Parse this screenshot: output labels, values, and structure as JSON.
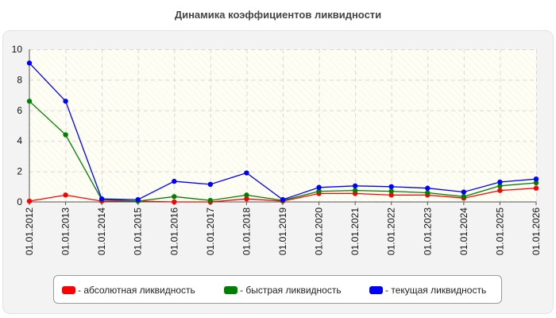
{
  "chart_data": {
    "type": "line",
    "title": "Динамика коэффициентов ликвидности",
    "categories": [
      "01.01.2012",
      "01.01.2013",
      "01.01.2014",
      "01.01.2015",
      "01.01.2016",
      "01.01.2017",
      "01.01.2018",
      "01.01.2019",
      "01.01.2020",
      "01.01.2021",
      "01.01.2022",
      "01.01.2023",
      "01.01.2024",
      "01.01.2025",
      "01.01.2026"
    ],
    "ylim": [
      0,
      10
    ],
    "yticks": [
      "0",
      "2",
      "4",
      "6",
      "8",
      "10"
    ],
    "grid": true,
    "legend_position": "bottom",
    "series": [
      {
        "name": "- абсолютная ликвидность",
        "color": "#ff0000",
        "values": [
          0.05,
          0.45,
          0.05,
          0.05,
          0.0,
          0.0,
          0.2,
          0.05,
          0.55,
          0.55,
          0.45,
          0.45,
          0.25,
          0.75,
          0.9
        ]
      },
      {
        "name": "- быстрая ликвидность",
        "color": "#008000",
        "values": [
          6.6,
          4.4,
          0.15,
          0.05,
          0.35,
          0.1,
          0.45,
          0.1,
          0.7,
          0.75,
          0.7,
          0.6,
          0.35,
          1.05,
          1.25
        ]
      },
      {
        "name": "- текущая ликвидность",
        "color": "#0000ff",
        "values": [
          9.1,
          6.6,
          0.2,
          0.15,
          1.35,
          1.15,
          1.9,
          0.15,
          0.95,
          1.05,
          1.0,
          0.9,
          0.65,
          1.3,
          1.5
        ]
      }
    ]
  }
}
